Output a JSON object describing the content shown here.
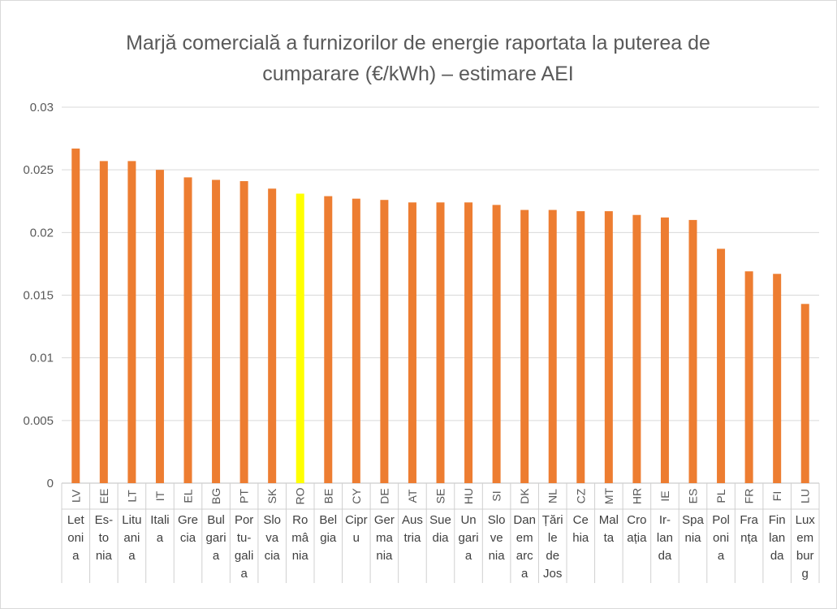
{
  "chart_data": {
    "type": "bar",
    "title": "Marjă comercială a furnizorilor de energie raportata la puterea de cumparare (€/kWh) – estimare AEI",
    "title_lines": [
      "Marjă comercială a furnizorilor de energie raportata la puterea de",
      "cumparare (€/kWh) – estimare AEI"
    ],
    "xlabel": "",
    "ylabel": "",
    "ylim": [
      0,
      0.03
    ],
    "yticks": [
      "0",
      "0.005",
      "0.01",
      "0.015",
      "0.02",
      "0.025",
      "0.03"
    ],
    "grid": true,
    "codes": [
      "LV",
      "EE",
      "LT",
      "IT",
      "EL",
      "BG",
      "PT",
      "SK",
      "RO",
      "BE",
      "CY",
      "DE",
      "AT",
      "SE",
      "HU",
      "SI",
      "DK",
      "NL",
      "CZ",
      "MT",
      "HR",
      "IE",
      "ES",
      "PL",
      "FR",
      "FI",
      "LU"
    ],
    "categories": [
      "Letonia",
      "Estonia",
      "Lituania",
      "Italia",
      "Grecia",
      "Bulgaria",
      "Portugalia",
      "Slovacia",
      "România",
      "Belgia",
      "Cipru",
      "Germania",
      "Austria",
      "Suedia",
      "Ungaria",
      "Slovenia",
      "Danemarca",
      "Țările de Jos",
      "Cehia",
      "Malta",
      "Croația",
      "Irlanda",
      "Spania",
      "Polonia",
      "Franța",
      "Finlanda",
      "Luxemburg"
    ],
    "category_lines": [
      [
        "Let",
        "oni",
        "a"
      ],
      [
        "Es-",
        "to",
        "nia"
      ],
      [
        "Litu",
        "ani",
        "a"
      ],
      [
        "Itali",
        "a"
      ],
      [
        "Gre",
        "cia"
      ],
      [
        "Bul",
        "gari",
        "a"
      ],
      [
        "Por",
        "tu-",
        "gali",
        "a"
      ],
      [
        "Slo",
        "va",
        "cia"
      ],
      [
        "Ro",
        "mâ",
        "nia"
      ],
      [
        "Bel",
        "gia"
      ],
      [
        "Cipr",
        "u"
      ],
      [
        "Ger",
        "ma",
        "nia"
      ],
      [
        "Aus",
        "tria"
      ],
      [
        "Sue",
        "dia"
      ],
      [
        "Un",
        "gari",
        "a"
      ],
      [
        "Slo",
        "ve",
        "nia"
      ],
      [
        "Dan",
        "em",
        "arc",
        "a"
      ],
      [
        "Țări",
        "le",
        "de",
        "Jos"
      ],
      [
        "Ce",
        "hia"
      ],
      [
        "Mal",
        "ta"
      ],
      [
        "Cro",
        "ația"
      ],
      [
        "Ir-",
        "lan",
        "da"
      ],
      [
        "Spa",
        "nia"
      ],
      [
        "Pol",
        "oni",
        "a"
      ],
      [
        "Fra",
        "nța"
      ],
      [
        "Fin",
        "lan",
        "da"
      ],
      [
        "Lux",
        "em",
        "bur",
        "g"
      ]
    ],
    "values": [
      0.0267,
      0.0257,
      0.0257,
      0.025,
      0.0244,
      0.0242,
      0.0241,
      0.0235,
      0.0231,
      0.0229,
      0.0227,
      0.0226,
      0.0224,
      0.0224,
      0.0224,
      0.0222,
      0.0218,
      0.0218,
      0.0217,
      0.0217,
      0.0214,
      0.0212,
      0.021,
      0.0187,
      0.0169,
      0.0167,
      0.0143
    ],
    "colors": {
      "bar": "#ED7D31",
      "highlight": "#FFFF00",
      "highlight_category": "RO",
      "grid": "#d9d9d9",
      "text": "#595959"
    }
  }
}
